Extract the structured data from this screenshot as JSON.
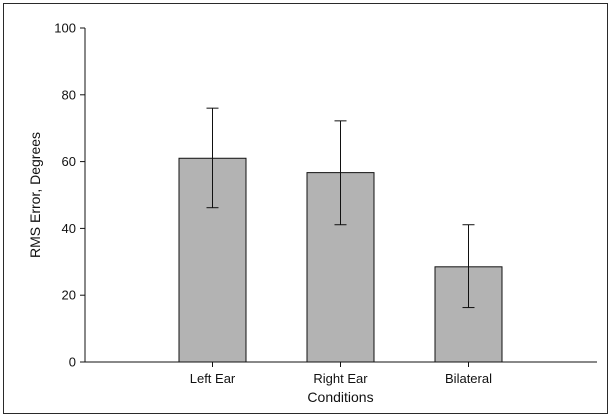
{
  "chart_data": {
    "type": "bar",
    "categories": [
      "Left Ear",
      "Right Ear",
      "Bilateral"
    ],
    "values": [
      61,
      56.7,
      28.5
    ],
    "error_high": [
      76,
      72.2,
      41.1
    ],
    "error_low": [
      46.2,
      41.1,
      16.3
    ],
    "xlabel": "Conditions",
    "ylabel": "RMS Error, Degrees",
    "ylim": [
      0,
      100
    ],
    "yticks": [
      0,
      20,
      40,
      60,
      80,
      100
    ],
    "grid": false,
    "colors": {
      "bar_fill": "#b3b3b3",
      "bar_stroke": "#111111",
      "axis": "#111111"
    }
  }
}
